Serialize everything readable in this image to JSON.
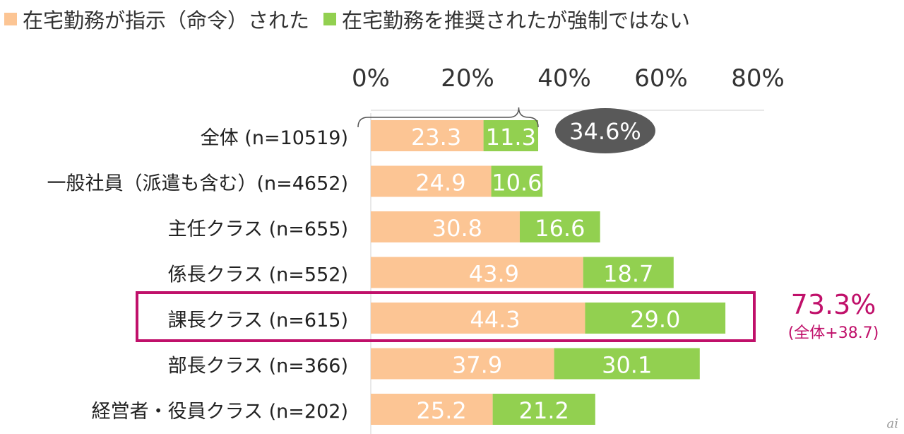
{
  "chart_data": {
    "type": "bar",
    "orientation": "horizontal",
    "stacked": true,
    "categories": [
      "全体 (n=10519)",
      "一般社員（派遣も含む）(n=4652)",
      "主任クラス (n=655)",
      "係長クラス (n=552)",
      "課長クラス (n=615)",
      "部長クラス (n=366)",
      "経営者・役員クラス (n=202)"
    ],
    "series": [
      {
        "name": "在宅勤務が指示（命令）された",
        "color": "#fcc594",
        "values": [
          23.3,
          24.9,
          30.8,
          43.9,
          44.3,
          37.9,
          25.2
        ]
      },
      {
        "name": "在宅勤務を推奨されたが強制ではない",
        "color": "#92d050",
        "values": [
          11.3,
          10.6,
          16.6,
          18.7,
          29.0,
          30.1,
          21.2
        ]
      }
    ],
    "value_labels": [
      [
        "23.3",
        "24.9",
        "30.8",
        "43.9",
        "44.3",
        "37.9",
        "25.2"
      ],
      [
        "11.3",
        "10.6",
        "16.6",
        "18.7",
        "29.0",
        "30.1",
        "21.2"
      ]
    ],
    "x_ticks": [
      "0%",
      "20%",
      "40%",
      "60%",
      "80%"
    ],
    "xlim": [
      0,
      80
    ],
    "legend": "top-left",
    "annotations": {
      "total_callout": "34.6%",
      "highlight_category": "課長クラス (n=615)",
      "highlight_value": "73.3%",
      "highlight_sub": "(全体+38.7)",
      "highlight_color": "#c0106a"
    }
  },
  "watermark": "ai"
}
